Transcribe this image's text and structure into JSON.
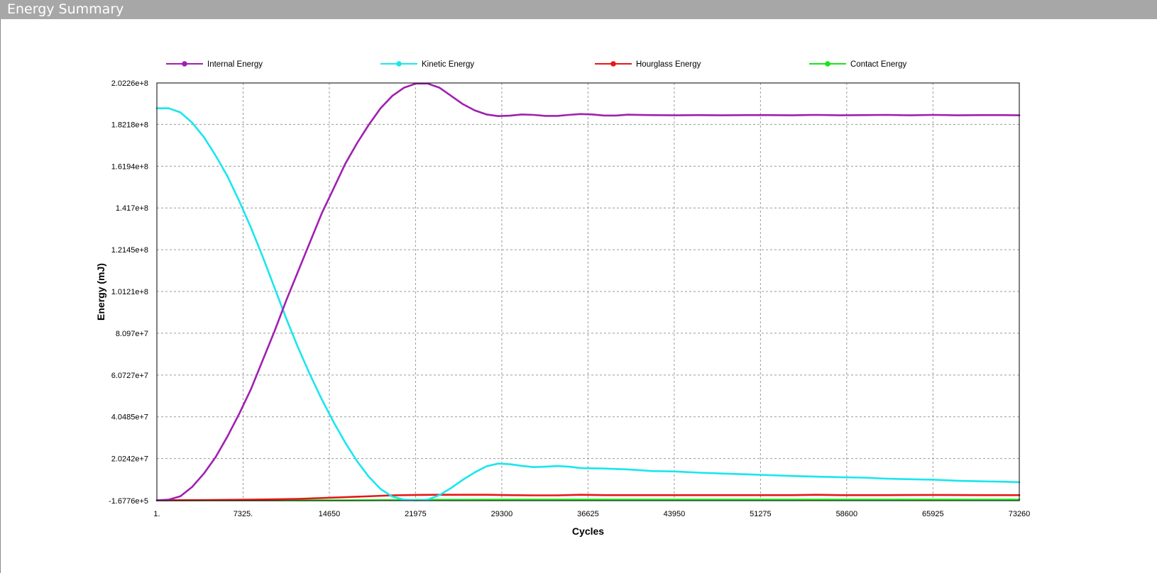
{
  "window": {
    "title": "Energy Summary"
  },
  "chart_data": {
    "type": "line",
    "title": "",
    "xlabel": "Cycles",
    "ylabel": "Energy (mJ)",
    "xlim": [
      1,
      73260
    ],
    "ylim": [
      -167760,
      202260000
    ],
    "grid": true,
    "legend_position": "top",
    "x_ticks": [
      {
        "value": 1,
        "label": "1."
      },
      {
        "value": 7325,
        "label": "7325."
      },
      {
        "value": 14650,
        "label": "14650"
      },
      {
        "value": 21975,
        "label": "21975"
      },
      {
        "value": 29300,
        "label": "29300"
      },
      {
        "value": 36625,
        "label": "36625"
      },
      {
        "value": 43950,
        "label": "43950"
      },
      {
        "value": 51275,
        "label": "51275"
      },
      {
        "value": 58600,
        "label": "58600"
      },
      {
        "value": 65925,
        "label": "65925"
      },
      {
        "value": 73260,
        "label": "73260"
      }
    ],
    "y_ticks": [
      {
        "value": -167760,
        "label": "-1.6776e+5"
      },
      {
        "value": 20242000,
        "label": "2.0242e+7"
      },
      {
        "value": 40485000,
        "label": "4.0485e+7"
      },
      {
        "value": 60727000,
        "label": "6.0727e+7"
      },
      {
        "value": 80970000,
        "label": "8.097e+7"
      },
      {
        "value": 101210000,
        "label": "1.0121e+8"
      },
      {
        "value": 121450000,
        "label": "1.2145e+8"
      },
      {
        "value": 141700000,
        "label": "1.417e+8"
      },
      {
        "value": 161940000,
        "label": "1.6194e+8"
      },
      {
        "value": 182180000,
        "label": "1.8218e+8"
      },
      {
        "value": 202260000,
        "label": "2.0226e+8"
      }
    ],
    "series": [
      {
        "name": "Internal Energy",
        "color": "#a020b0",
        "x": [
          1,
          1000,
          2000,
          3000,
          4000,
          5000,
          6000,
          7000,
          8000,
          9000,
          10000,
          11000,
          12000,
          13000,
          14000,
          15000,
          16000,
          17000,
          18000,
          19000,
          20000,
          21000,
          22000,
          23000,
          24000,
          25000,
          26000,
          27000,
          28000,
          29000,
          30000,
          31000,
          32000,
          33000,
          34000,
          35000,
          36000,
          37000,
          38000,
          39000,
          40000,
          42000,
          44000,
          46000,
          48000,
          50000,
          52000,
          54000,
          56000,
          58000,
          60000,
          62000,
          64000,
          66000,
          68000,
          70000,
          72000,
          73260
        ],
        "y": [
          0,
          300000,
          2000000,
          6500000,
          13000000,
          21000000,
          31000000,
          42000000,
          54000000,
          68000000,
          82000000,
          97000000,
          111000000,
          125000000,
          139000000,
          151000000,
          163000000,
          173000000,
          182000000,
          190000000,
          196000000,
          200000000,
          202000000,
          202000000,
          200000000,
          196000000,
          192000000,
          189000000,
          187000000,
          186200000,
          186400000,
          187000000,
          186800000,
          186300000,
          186300000,
          186800000,
          187200000,
          187000000,
          186500000,
          186500000,
          186900000,
          186700000,
          186600000,
          186700000,
          186600000,
          186700000,
          186700000,
          186600000,
          186800000,
          186600000,
          186700000,
          186800000,
          186600000,
          186800000,
          186600000,
          186700000,
          186700000,
          186600000
        ]
      },
      {
        "name": "Kinetic Energy",
        "color": "#19e6ee",
        "x": [
          1,
          1000,
          2000,
          3000,
          4000,
          5000,
          6000,
          7000,
          8000,
          9000,
          10000,
          11000,
          12000,
          13000,
          14000,
          15000,
          16000,
          17000,
          18000,
          19000,
          20000,
          21000,
          22000,
          23000,
          24000,
          25000,
          26000,
          27000,
          28000,
          29000,
          30000,
          31000,
          32000,
          33000,
          34000,
          35000,
          36000,
          38000,
          40000,
          42000,
          44000,
          46000,
          48000,
          50000,
          52000,
          54000,
          56000,
          58000,
          60000,
          62000,
          64000,
          66000,
          68000,
          70000,
          72000,
          73260
        ],
        "y": [
          190000000,
          190000000,
          188000000,
          183000000,
          176000000,
          167000000,
          157000000,
          145000000,
          132000000,
          118000000,
          103000000,
          88000000,
          74000000,
          61000000,
          49000000,
          38000000,
          28000000,
          19000000,
          11500000,
          5500000,
          1800000,
          300000,
          0,
          300000,
          2500000,
          6000000,
          10000000,
          13500000,
          16500000,
          17800000,
          17500000,
          16700000,
          16100000,
          16300000,
          16600000,
          16300000,
          15600000,
          15400000,
          15000000,
          14200000,
          14000000,
          13400000,
          13000000,
          12600000,
          12200000,
          11800000,
          11500000,
          11200000,
          11000000,
          10500000,
          10200000,
          10000000,
          9500000,
          9200000,
          9000000,
          8800000
        ]
      },
      {
        "name": "Hourglass Energy",
        "color": "#e81616",
        "x": [
          1,
          4000,
          8000,
          12000,
          16000,
          20000,
          22000,
          24000,
          28000,
          30000,
          32000,
          34000,
          36000,
          38000,
          42000,
          48000,
          54000,
          56000,
          58000,
          62000,
          66000,
          70000,
          73260
        ],
        "y": [
          0,
          100000,
          300000,
          700000,
          1500000,
          2400000,
          2600000,
          2700000,
          2700000,
          2500000,
          2400000,
          2400000,
          2700000,
          2500000,
          2500000,
          2500000,
          2500000,
          2700000,
          2500000,
          2500000,
          2600000,
          2500000,
          2500000
        ]
      },
      {
        "name": "Contact Energy",
        "color": "#16e616",
        "x": [
          1,
          8000,
          16000,
          22000,
          30000,
          40000,
          50000,
          60000,
          73260
        ],
        "y": [
          0,
          0,
          0,
          200000,
          300000,
          300000,
          300000,
          300000,
          300000
        ]
      }
    ]
  }
}
